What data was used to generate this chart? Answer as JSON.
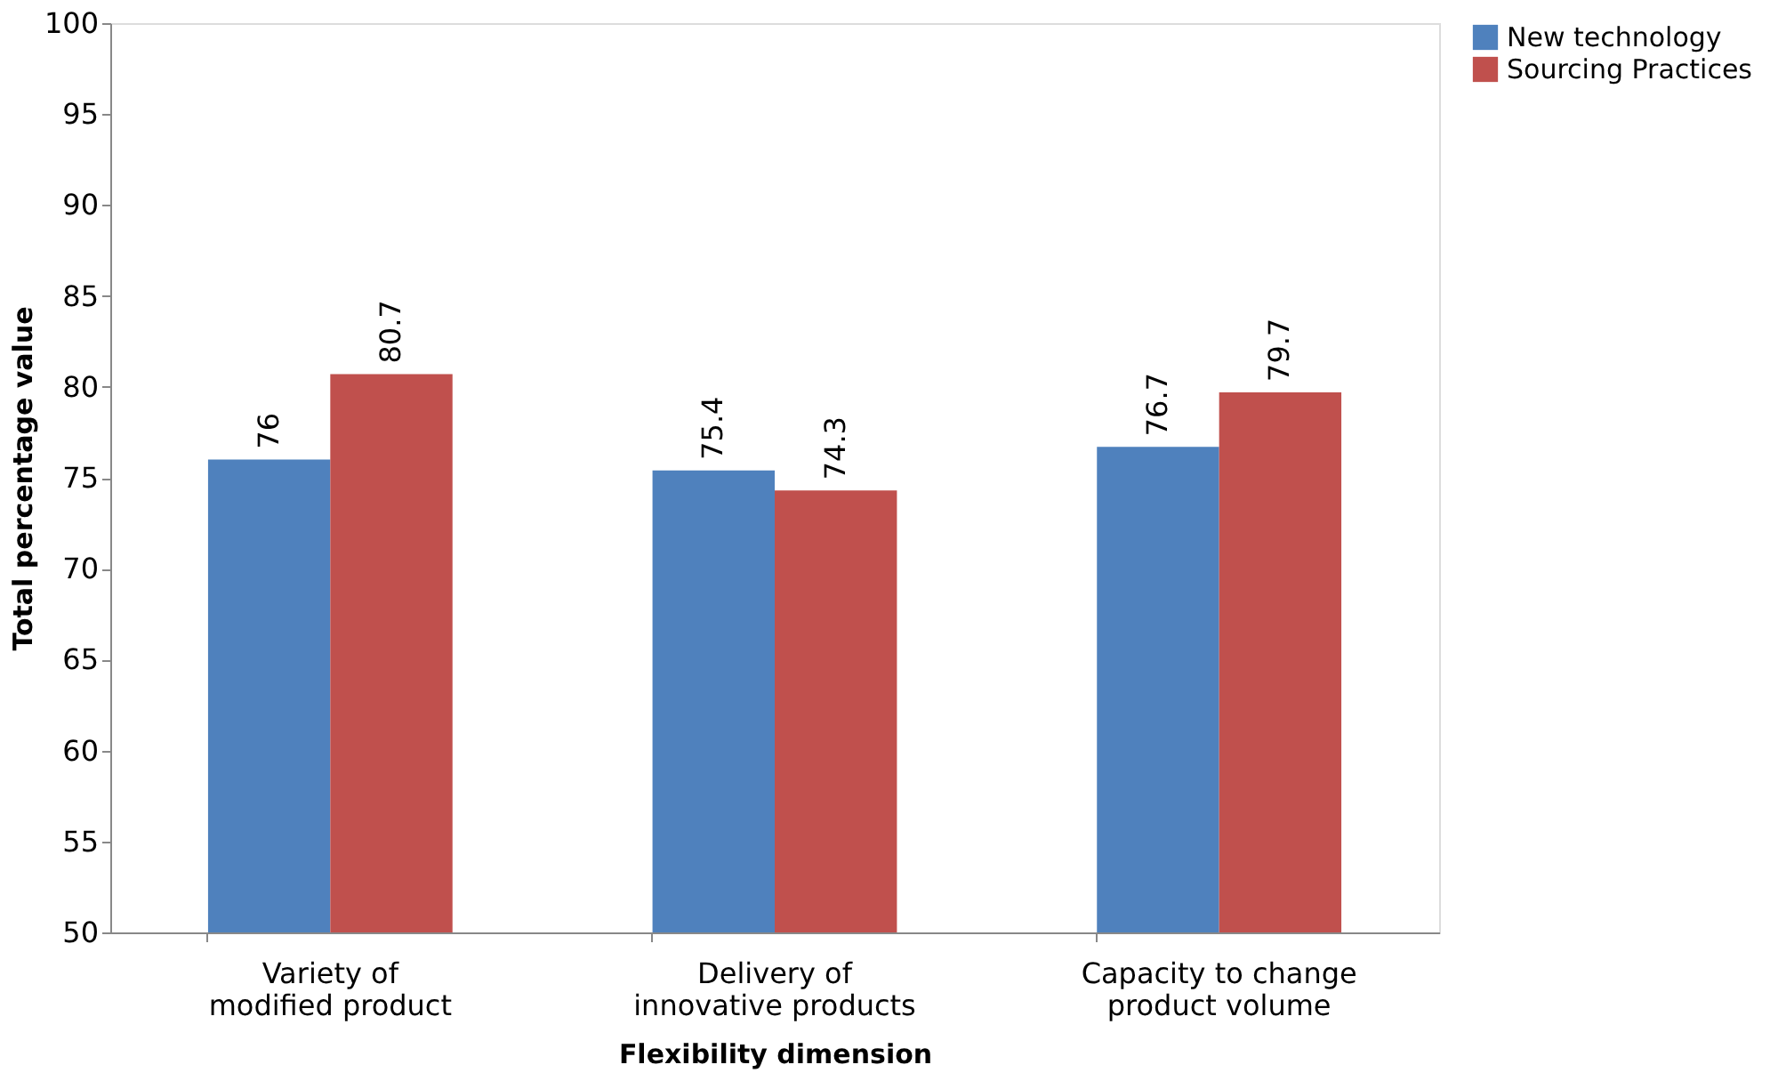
{
  "chart_data": {
    "type": "bar",
    "xlabel": "Flexibility dimension",
    "ylabel": "Total percentage value",
    "categories": [
      "Variety of modified product",
      "Delivery of innovative products",
      "Capacity to change product volume"
    ],
    "series": [
      {
        "name": "New technology",
        "color": "#4f81bd",
        "values": [
          76,
          75.4,
          76.7
        ]
      },
      {
        "name": "Sourcing Practices",
        "color": "#c0504d",
        "values": [
          80.7,
          74.3,
          79.7
        ]
      }
    ],
    "ylim": [
      50,
      100
    ],
    "yticks": [
      50,
      55,
      60,
      65,
      70,
      75,
      80,
      85,
      90,
      95,
      100
    ],
    "data_labels": true,
    "legend": "right",
    "grid": false
  }
}
